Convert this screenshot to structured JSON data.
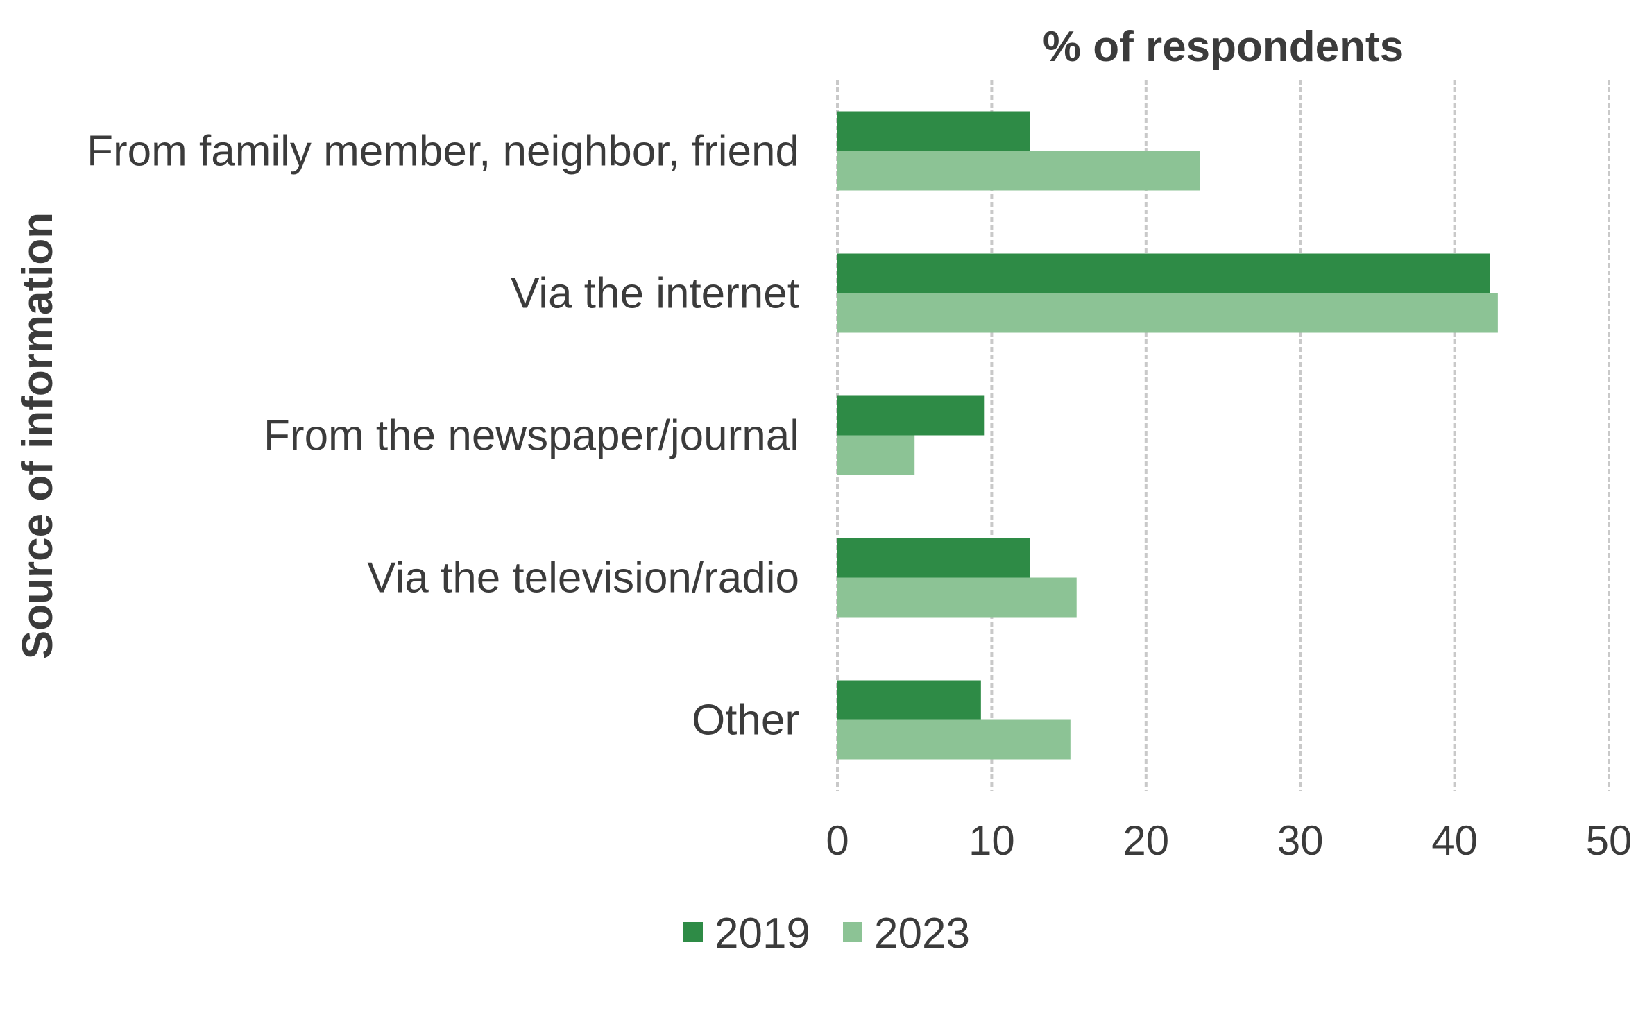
{
  "chart_data": {
    "type": "bar",
    "orientation": "horizontal",
    "title": "% of respondents",
    "xlabel": "% of respondents",
    "ylabel": "Source of information",
    "xlim": [
      0,
      50
    ],
    "xticks": [
      0,
      10,
      20,
      30,
      40,
      50
    ],
    "grid": true,
    "legend_position": "bottom",
    "categories": [
      "From family member, neighbor, friend",
      "Via the internet",
      "From the newspaper/journal",
      "Via the television/radio",
      "Other"
    ],
    "series": [
      {
        "name": "2019",
        "color": "#2e8b46",
        "values": [
          12.5,
          42.3,
          9.5,
          12.5,
          9.3
        ]
      },
      {
        "name": "2023",
        "color": "#8cc395",
        "values": [
          23.5,
          42.8,
          5.0,
          15.5,
          15.1
        ]
      }
    ]
  }
}
